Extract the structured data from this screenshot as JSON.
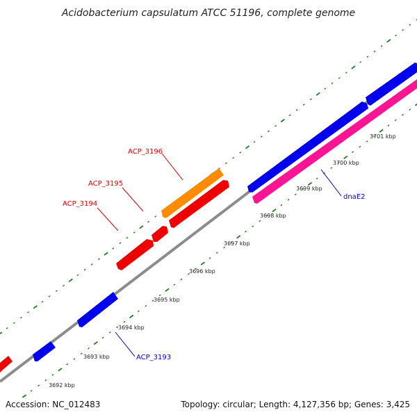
{
  "title": "Acidobacterium capsulatum ATCC 51196, complete genome",
  "footer": {
    "accession": "Accession: NC_012483",
    "summary": "Topology: circular; Length: 4,127,356 bp; Genes: 3,425"
  },
  "colors": {
    "backbone": "#8c8c8c",
    "tick": "#1f7a1f",
    "cds_forward": "#0000ee",
    "cds_reverse": "#ee0000",
    "rna": "#ff8c00",
    "highlight": "#ff1493",
    "label_red": "#dd0000",
    "label_blue": "#0000cc"
  },
  "scale_labels": [
    "3692 kbp",
    "3693 kbp",
    "3694 kbp",
    "3695 kbp",
    "3696 kbp",
    "3697 kbp",
    "3698 kbp",
    "3699 kbp",
    "3700 kbp",
    "3701 kbp"
  ],
  "gene_labels": [
    {
      "text": "ACP_3196",
      "color": "label_red"
    },
    {
      "text": "ACP_3195",
      "color": "label_red"
    },
    {
      "text": "ACP_3194",
      "color": "label_red"
    },
    {
      "text": "dnaE2",
      "color": "label_blue"
    },
    {
      "text": "ACP_3193",
      "color": "label_blue"
    }
  ],
  "features": [
    {
      "name": "ACP_3192",
      "track": "reverse",
      "color": "cds_reverse"
    },
    {
      "name": "ACP_3193_a",
      "track": "forward",
      "color": "cds_forward"
    },
    {
      "name": "ACP_3193",
      "track": "forward",
      "color": "cds_forward"
    },
    {
      "name": "ACP_3194",
      "track": "reverse",
      "color": "cds_reverse"
    },
    {
      "name": "ACP_3194_b",
      "track": "reverse",
      "color": "cds_reverse"
    },
    {
      "name": "ACP_3195",
      "track": "reverse",
      "color": "cds_reverse"
    },
    {
      "name": "ACP_3196",
      "track": "reverse-outer",
      "color": "rna"
    },
    {
      "name": "ACP_3197",
      "track": "forward",
      "color": "cds_forward"
    },
    {
      "name": "ACP_3198",
      "track": "forward",
      "color": "cds_forward"
    },
    {
      "name": "dnaE2",
      "track": "inner",
      "color": "highlight"
    }
  ]
}
